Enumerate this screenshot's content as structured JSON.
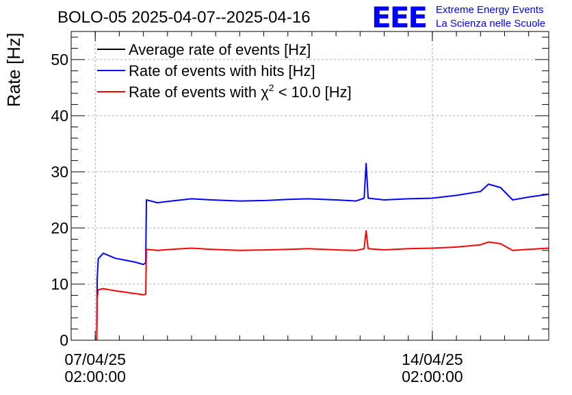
{
  "title": "BOLO-05 2025-04-07--2025-04-16",
  "logo": {
    "mark": "EEE",
    "line1": "Extreme Energy Events",
    "line2": "La Scienza nelle Scuole",
    "color": "#0000ff"
  },
  "legend": {
    "items": [
      {
        "label": "Average rate of events [Hz]",
        "color": "#000000"
      },
      {
        "label": "Rate of events with hits [Hz]",
        "color": "#0000ff"
      },
      {
        "label_prefix": "Rate of events with ",
        "label_chi": "χ",
        "label_sup": "2",
        "label_suffix": " < 10.0 [Hz]",
        "color": "#ff0000"
      }
    ]
  },
  "chart_data": {
    "type": "line",
    "title": "BOLO-05 2025-04-07--2025-04-16",
    "xlabel": "",
    "ylabel": "Rate [Hz]",
    "ylim": [
      0,
      55
    ],
    "y_ticks": [
      0,
      10,
      20,
      30,
      40,
      50
    ],
    "xlim": [
      "2025-04-06T14:00",
      "2025-04-16T12:00"
    ],
    "x_ticks": [
      {
        "at": "2025-04-07T02:00",
        "line1": "07/04/25",
        "line2": "02:00:00"
      },
      {
        "at": "2025-04-14T02:00",
        "line1": "14/04/25",
        "line2": "02:00:00"
      }
    ],
    "grid": true,
    "legend_position": "top-left",
    "series": [
      {
        "name": "Average rate of events [Hz]",
        "color": "#000000",
        "points": []
      },
      {
        "name": "Rate of events with hits [Hz]",
        "color": "#0000ff",
        "points": [
          [
            "2025-04-07T02:45",
            0
          ],
          [
            "2025-04-07T03:00",
            11
          ],
          [
            "2025-04-07T03:30",
            14.5
          ],
          [
            "2025-04-07T06:00",
            15.5
          ],
          [
            "2025-04-07T12:00",
            14.6
          ],
          [
            "2025-04-07T18:00",
            14.2
          ],
          [
            "2025-04-07T22:00",
            13.9
          ],
          [
            "2025-04-08T02:00",
            13.5
          ],
          [
            "2025-04-08T03:10",
            13.8
          ],
          [
            "2025-04-08T03:30",
            25.0
          ],
          [
            "2025-04-08T09:00",
            24.5
          ],
          [
            "2025-04-08T16:00",
            24.8
          ],
          [
            "2025-04-09T02:00",
            25.2
          ],
          [
            "2025-04-09T12:00",
            25.0
          ],
          [
            "2025-04-10T02:00",
            24.8
          ],
          [
            "2025-04-10T16:00",
            24.9
          ],
          [
            "2025-04-11T02:00",
            25.1
          ],
          [
            "2025-04-11T12:00",
            25.2
          ],
          [
            "2025-04-12T02:00",
            25.0
          ],
          [
            "2025-04-12T12:00",
            24.8
          ],
          [
            "2025-04-12T16:00",
            25.3
          ],
          [
            "2025-04-12T17:00",
            31.5
          ],
          [
            "2025-04-12T18:00",
            25.3
          ],
          [
            "2025-04-13T02:00",
            25.0
          ],
          [
            "2025-04-13T14:00",
            25.2
          ],
          [
            "2025-04-14T02:00",
            25.3
          ],
          [
            "2025-04-14T14:00",
            25.8
          ],
          [
            "2025-04-15T02:00",
            26.5
          ],
          [
            "2025-04-15T06:00",
            27.8
          ],
          [
            "2025-04-15T12:00",
            27.2
          ],
          [
            "2025-04-15T18:00",
            25.0
          ],
          [
            "2025-04-16T02:00",
            25.5
          ],
          [
            "2025-04-16T12:00",
            26.0
          ]
        ]
      },
      {
        "name": "Rate of events with χ2 < 10.0 [Hz]",
        "color": "#ff0000",
        "points": [
          [
            "2025-04-07T02:45",
            0
          ],
          [
            "2025-04-07T03:00",
            7.5
          ],
          [
            "2025-04-07T03:30",
            9.0
          ],
          [
            "2025-04-07T06:00",
            9.2
          ],
          [
            "2025-04-07T12:00",
            8.8
          ],
          [
            "2025-04-07T18:00",
            8.5
          ],
          [
            "2025-04-07T22:00",
            8.3
          ],
          [
            "2025-04-08T02:00",
            8.1
          ],
          [
            "2025-04-08T03:10",
            8.2
          ],
          [
            "2025-04-08T03:30",
            16.2
          ],
          [
            "2025-04-08T09:00",
            16.0
          ],
          [
            "2025-04-08T16:00",
            16.2
          ],
          [
            "2025-04-09T02:00",
            16.4
          ],
          [
            "2025-04-09T12:00",
            16.2
          ],
          [
            "2025-04-10T02:00",
            16.0
          ],
          [
            "2025-04-10T16:00",
            16.1
          ],
          [
            "2025-04-11T02:00",
            16.2
          ],
          [
            "2025-04-11T12:00",
            16.3
          ],
          [
            "2025-04-12T02:00",
            16.1
          ],
          [
            "2025-04-12T12:00",
            16.0
          ],
          [
            "2025-04-12T16:00",
            16.3
          ],
          [
            "2025-04-12T17:00",
            19.5
          ],
          [
            "2025-04-12T18:00",
            16.3
          ],
          [
            "2025-04-13T02:00",
            16.1
          ],
          [
            "2025-04-13T14:00",
            16.3
          ],
          [
            "2025-04-14T02:00",
            16.4
          ],
          [
            "2025-04-14T14:00",
            16.6
          ],
          [
            "2025-04-15T02:00",
            17.0
          ],
          [
            "2025-04-15T06:00",
            17.5
          ],
          [
            "2025-04-15T12:00",
            17.2
          ],
          [
            "2025-04-15T18:00",
            16.0
          ],
          [
            "2025-04-16T02:00",
            16.2
          ],
          [
            "2025-04-16T12:00",
            16.4
          ]
        ]
      }
    ]
  }
}
